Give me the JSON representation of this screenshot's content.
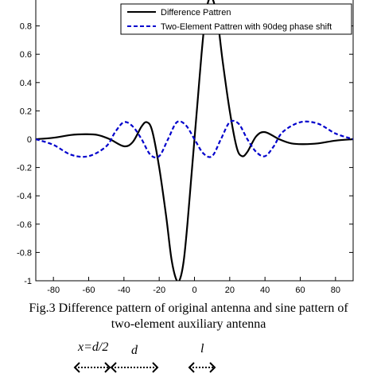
{
  "chart_data": {
    "type": "line",
    "title": "",
    "xlabel": "",
    "ylabel": "",
    "xlim": [
      -90,
      90
    ],
    "ylim": [
      -1,
      1
    ],
    "xticks": [
      -80,
      -60,
      -40,
      -20,
      0,
      20,
      40,
      60,
      80
    ],
    "yticks": [
      -1,
      -0.8,
      -0.6,
      -0.4,
      -0.2,
      0,
      0.2,
      0.4,
      0.6,
      0.8
    ],
    "ytick_labels": [
      "-1",
      "-0.8",
      "-0.6",
      "-0.4",
      "-0.2",
      "0",
      "0.2",
      "0.4",
      "0.6",
      "0.8"
    ],
    "xtick_labels": [
      "-80",
      "-60",
      "-40",
      "-20",
      "0",
      "20",
      "40",
      "60",
      "80"
    ],
    "legend_position": "top-right",
    "series": [
      {
        "name": "Difference Pattren",
        "color": "#000000",
        "style": "solid",
        "x": [
          -90,
          -80,
          -70,
          -62,
          -55,
          -48,
          -40,
          -35,
          -30,
          -27,
          -24,
          -20,
          -16,
          -13,
          -10,
          -8,
          -6,
          -4,
          -2,
          0,
          2,
          4,
          6,
          8,
          10,
          13,
          16,
          20,
          24,
          27,
          30,
          35,
          40,
          48,
          55,
          62,
          70,
          80,
          90
        ],
        "values": [
          0,
          0.01,
          0.03,
          0.035,
          0.03,
          0.0,
          -0.05,
          -0.02,
          0.09,
          0.12,
          0.06,
          -0.2,
          -0.55,
          -0.85,
          -1.0,
          -0.98,
          -0.85,
          -0.6,
          -0.3,
          0,
          0.3,
          0.6,
          0.85,
          0.98,
          1.0,
          0.85,
          0.55,
          0.2,
          -0.06,
          -0.12,
          -0.09,
          0.02,
          0.05,
          0.0,
          -0.03,
          -0.035,
          -0.03,
          -0.01,
          0
        ]
      },
      {
        "name": "Two-Element Pattren with 90deg phase shift",
        "color": "#0000cc",
        "style": "dashed",
        "x": [
          -90,
          -80,
          -70,
          -60,
          -50,
          -45,
          -40,
          -35,
          -30,
          -25,
          -20,
          -15,
          -10,
          -5,
          0,
          5,
          10,
          15,
          20,
          25,
          30,
          35,
          40,
          45,
          50,
          60,
          70,
          80,
          90
        ],
        "values": [
          0,
          -0.04,
          -0.11,
          -0.12,
          -0.05,
          0.05,
          0.12,
          0.09,
          0,
          -0.11,
          -0.12,
          0,
          0.12,
          0.1,
          0,
          -0.1,
          -0.12,
          0,
          0.12,
          0.11,
          0,
          -0.09,
          -0.12,
          -0.05,
          0.05,
          0.12,
          0.11,
          0.04,
          0
        ]
      }
    ]
  },
  "caption": {
    "line1": "Fig.3 Difference pattern of original antenna and sine pattern of",
    "line2": "two-element auxiliary antenna"
  },
  "diagram_labels": {
    "x_label": "x=d/2",
    "d_label": "d",
    "l_label": "l"
  }
}
